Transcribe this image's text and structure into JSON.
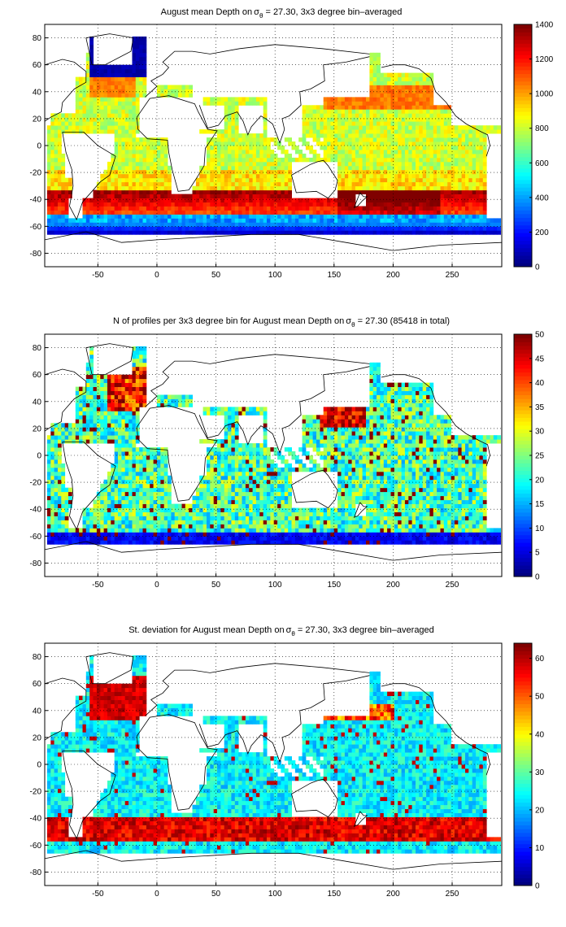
{
  "chart_data": [
    {
      "type": "heatmap",
      "title": "August mean Depth on",
      "title_symbol": "σ",
      "title_subscript": "θ",
      "title_tail": " = 27.30, 3x3 degree bin–averaged",
      "xlim": [
        -95,
        292
      ],
      "ylim": [
        -90,
        90
      ],
      "x_ticks": [
        -50,
        0,
        50,
        100,
        150,
        200,
        250
      ],
      "y_ticks": [
        80,
        60,
        40,
        20,
        0,
        -20,
        -40,
        -60,
        -80
      ],
      "grid": true,
      "colormap": "jet",
      "colorbar": {
        "min": 0,
        "max": 1400,
        "ticks": [
          1400,
          1200,
          1000,
          800,
          600,
          400,
          200,
          0
        ]
      },
      "field": "depth",
      "colors": {
        "land": "#ffffff",
        "coast": "#000000"
      }
    },
    {
      "type": "heatmap",
      "title": "N of profiles per 3x3 degree bin for August mean Depth on",
      "title_symbol": "σ",
      "title_subscript": "θ",
      "title_tail": " = 27.30 (85418 in total)",
      "xlim": [
        -95,
        292
      ],
      "ylim": [
        -90,
        90
      ],
      "x_ticks": [
        -50,
        0,
        50,
        100,
        150,
        200,
        250
      ],
      "y_ticks": [
        80,
        60,
        40,
        20,
        0,
        -20,
        -40,
        -60,
        -80
      ],
      "grid": true,
      "colormap": "jet",
      "colorbar": {
        "min": 0,
        "max": 50,
        "ticks": [
          50,
          45,
          40,
          35,
          30,
          25,
          20,
          15,
          10,
          5,
          0
        ]
      },
      "field": "count",
      "total_profiles": 85418
    },
    {
      "type": "heatmap",
      "title": "St. deviation for August mean Depth on",
      "title_symbol": "σ",
      "title_subscript": "θ",
      "title_tail": " = 27.30, 3x3 degree bin–averaged",
      "xlim": [
        -95,
        292
      ],
      "ylim": [
        -90,
        90
      ],
      "x_ticks": [
        -50,
        0,
        50,
        100,
        150,
        200,
        250
      ],
      "y_ticks": [
        80,
        60,
        40,
        20,
        0,
        -20,
        -40,
        -60,
        -80
      ],
      "grid": true,
      "colormap": "jet",
      "colorbar": {
        "min": 0,
        "max": 64,
        "ticks": [
          60,
          50,
          40,
          30,
          20,
          10,
          0
        ]
      },
      "field": "stdev"
    }
  ]
}
